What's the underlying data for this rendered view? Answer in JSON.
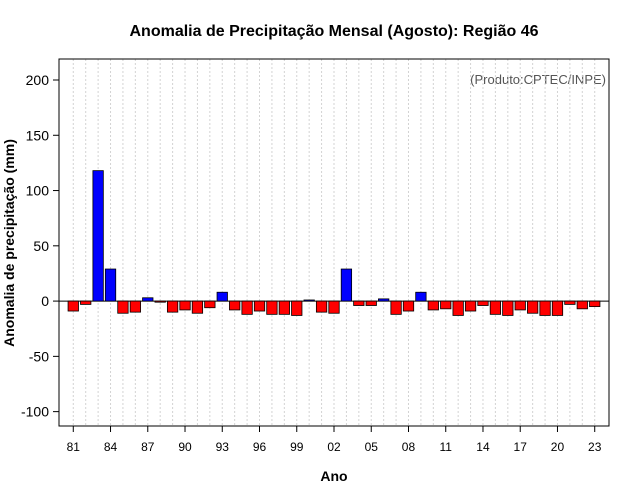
{
  "chart_data": {
    "type": "bar",
    "title": "Anomalia de Precipitação Mensal (Agosto): Região 46",
    "xlabel": "Ano",
    "ylabel": "Anomalia de precipitação (mm)",
    "annotation": "(Produto:CPTEC/INPE)",
    "ylim": [
      -113,
      219
    ],
    "yticks": [
      -100,
      -50,
      0,
      50,
      100,
      150,
      200
    ],
    "grid": "vertical-dotted",
    "positive_color": "#0000ff",
    "negative_color": "#ff0000",
    "categories": [
      "81",
      "82",
      "83",
      "84",
      "85",
      "86",
      "87",
      "88",
      "89",
      "90",
      "91",
      "92",
      "93",
      "94",
      "95",
      "96",
      "97",
      "98",
      "99",
      "00",
      "01",
      "02",
      "03",
      "04",
      "05",
      "06",
      "07",
      "08",
      "09",
      "10",
      "11",
      "12",
      "13",
      "14",
      "15",
      "16",
      "17",
      "18",
      "19",
      "20",
      "21",
      "22",
      "23"
    ],
    "values": [
      -9,
      -3,
      118,
      29,
      -11,
      -10,
      3,
      -1,
      -10,
      -8,
      -11,
      -6,
      8,
      -8,
      -12,
      -9,
      -12,
      -12,
      -13,
      1,
      -10,
      -11,
      29,
      -4,
      -4,
      2,
      -12,
      -9,
      8,
      -8,
      -7,
      -13,
      -9,
      -4,
      -12,
      -13,
      -8,
      -11,
      -13,
      -13,
      -3,
      -7,
      -5
    ],
    "xtick_labels": [
      "81",
      "84",
      "87",
      "90",
      "93",
      "96",
      "99",
      "02",
      "05",
      "08",
      "11",
      "14",
      "17",
      "20",
      "23"
    ]
  }
}
